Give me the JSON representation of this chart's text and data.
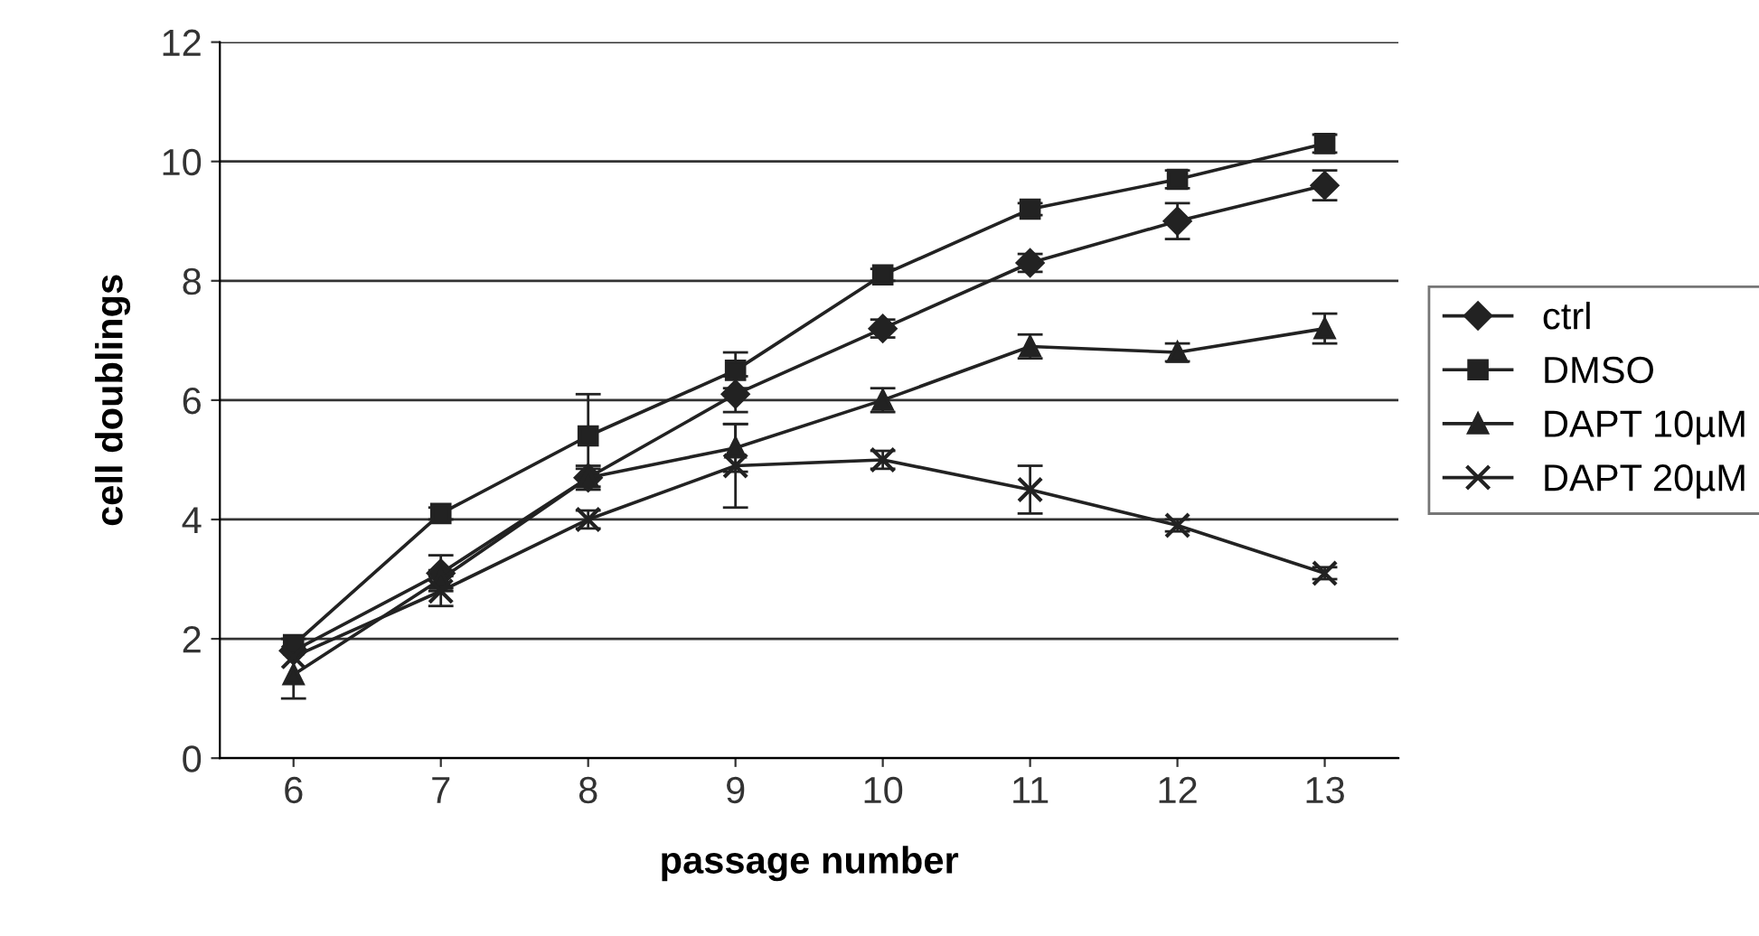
{
  "chart_data": {
    "type": "line",
    "xlabel": "passage number",
    "ylabel": "cell doublings",
    "categories": [
      "6",
      "7",
      "8",
      "9",
      "10",
      "11",
      "12",
      "13"
    ],
    "series": [
      {
        "name": "ctrl",
        "color": "#222222",
        "marker": "diamond",
        "values": [
          1.8,
          3.1,
          4.7,
          6.1,
          7.2,
          8.3,
          9.0,
          9.6
        ],
        "errors": [
          null,
          0.3,
          0.15,
          0.3,
          0.15,
          0.15,
          0.3,
          0.25
        ]
      },
      {
        "name": "DMSO",
        "color": "#222222",
        "marker": "square",
        "values": [
          1.9,
          4.1,
          5.4,
          6.5,
          8.1,
          9.2,
          9.7,
          10.3
        ],
        "errors": [
          0.1,
          0.1,
          0.7,
          0.3,
          0.1,
          0.1,
          0.15,
          0.15
        ]
      },
      {
        "name": "DAPT 10µM",
        "color": "#222222",
        "marker": "triangle",
        "values": [
          1.4,
          3.0,
          4.7,
          5.2,
          6.0,
          6.9,
          6.8,
          7.2
        ],
        "errors": [
          0.4,
          0.15,
          0.2,
          0.4,
          0.2,
          0.2,
          0.15,
          0.25
        ]
      },
      {
        "name": "DAPT 20µM",
        "color": "#222222",
        "marker": "cross",
        "values": [
          1.7,
          2.8,
          4.0,
          4.9,
          5.0,
          4.5,
          3.9,
          3.1
        ],
        "errors": [
          null,
          0.25,
          0.15,
          0.7,
          0.15,
          0.4,
          0.1,
          0.1
        ]
      }
    ],
    "ylim": [
      0,
      12
    ],
    "yticks": [
      0,
      2,
      4,
      6,
      8,
      10,
      12
    ],
    "grid": "y",
    "legend": "right"
  }
}
